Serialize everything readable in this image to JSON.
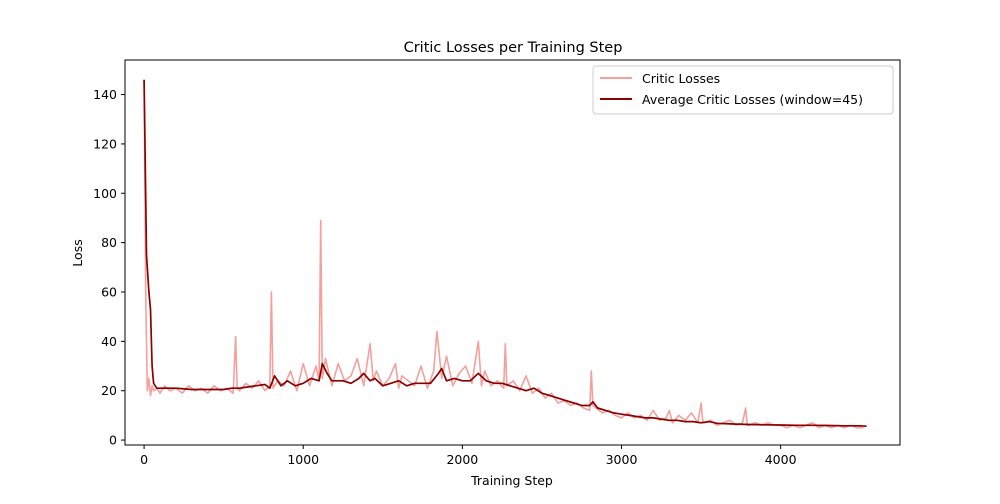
{
  "chart_data": {
    "type": "line",
    "title": "Critic Losses per Training Step",
    "xlabel": "Training Step",
    "ylabel": "Loss",
    "xlim": [
      -120,
      4750
    ],
    "ylim": [
      -2,
      154
    ],
    "xticks": [
      0,
      1000,
      2000,
      3000,
      4000
    ],
    "yticks": [
      0,
      20,
      40,
      60,
      80,
      100,
      120,
      140
    ],
    "grid": false,
    "legend_position": "upper right",
    "series": [
      {
        "name": "Critic Losses",
        "color": "#f4a09c",
        "x": [
          0,
          10,
          20,
          30,
          40,
          50,
          60,
          80,
          100,
          130,
          160,
          200,
          240,
          280,
          320,
          360,
          400,
          440,
          480,
          520,
          560,
          575,
          585,
          600,
          640,
          680,
          720,
          760,
          790,
          800,
          810,
          840,
          880,
          920,
          960,
          1000,
          1040,
          1080,
          1100,
          1110,
          1120,
          1140,
          1180,
          1220,
          1260,
          1300,
          1340,
          1380,
          1420,
          1440,
          1460,
          1500,
          1540,
          1580,
          1600,
          1620,
          1660,
          1700,
          1740,
          1780,
          1820,
          1840,
          1850,
          1870,
          1900,
          1940,
          1980,
          2020,
          2060,
          2100,
          2120,
          2140,
          2180,
          2220,
          2260,
          2270,
          2280,
          2320,
          2360,
          2400,
          2440,
          2480,
          2520,
          2560,
          2600,
          2640,
          2680,
          2720,
          2760,
          2800,
          2810,
          2820,
          2840,
          2880,
          2920,
          2960,
          3000,
          3040,
          3080,
          3120,
          3160,
          3200,
          3240,
          3280,
          3300,
          3320,
          3360,
          3400,
          3440,
          3480,
          3500,
          3510,
          3520,
          3560,
          3600,
          3640,
          3680,
          3720,
          3760,
          3780,
          3790,
          3800,
          3840,
          3880,
          3920,
          3960,
          4000,
          4040,
          4080,
          4120,
          4160,
          4200,
          4240,
          4280,
          4320,
          4360,
          4400,
          4440,
          4480,
          4520
        ],
        "y": [
          146,
          60,
          20,
          25,
          18,
          22,
          20,
          21,
          19,
          22,
          20,
          21,
          19,
          22,
          20,
          21,
          19,
          22,
          20,
          21,
          19,
          42,
          21,
          20,
          23,
          21,
          24,
          20,
          22,
          60,
          21,
          24,
          22,
          28,
          20,
          31,
          22,
          30,
          24,
          89,
          25,
          33,
          22,
          31,
          24,
          26,
          33,
          22,
          39,
          24,
          28,
          22,
          25,
          31,
          21,
          26,
          24,
          22,
          30,
          21,
          28,
          44,
          38,
          25,
          34,
          22,
          27,
          30,
          23,
          40,
          22,
          28,
          22,
          24,
          21,
          39,
          22,
          24,
          20,
          26,
          19,
          21,
          17,
          19,
          15,
          16,
          14,
          15,
          13,
          12,
          28,
          14,
          13,
          11,
          12,
          10,
          9,
          11,
          9,
          10,
          8,
          12,
          8,
          9,
          12,
          7,
          10,
          8,
          11,
          7,
          15,
          8,
          7,
          8,
          6,
          7,
          8,
          6,
          7,
          13,
          6,
          6,
          7,
          6,
          7,
          6,
          6,
          5,
          6,
          5,
          6,
          7,
          5,
          6,
          5,
          6,
          5,
          6,
          5,
          5
        ]
      },
      {
        "name": "Average Critic Losses (window=45)",
        "color": "#8b0000",
        "x": [
          0,
          15,
          30,
          40,
          50,
          60,
          80,
          100,
          150,
          200,
          300,
          400,
          500,
          550,
          600,
          650,
          700,
          760,
          790,
          820,
          860,
          900,
          950,
          1000,
          1050,
          1100,
          1120,
          1150,
          1180,
          1250,
          1300,
          1350,
          1380,
          1420,
          1450,
          1500,
          1550,
          1600,
          1650,
          1700,
          1750,
          1800,
          1850,
          1870,
          1900,
          1950,
          2000,
          2050,
          2100,
          2150,
          2200,
          2250,
          2300,
          2350,
          2400,
          2450,
          2500,
          2550,
          2600,
          2650,
          2700,
          2750,
          2800,
          2820,
          2850,
          2900,
          2950,
          3000,
          3050,
          3100,
          3150,
          3200,
          3250,
          3300,
          3350,
          3400,
          3450,
          3500,
          3550,
          3600,
          3700,
          3800,
          3900,
          4000,
          4100,
          4200,
          4300,
          4400,
          4500,
          4540
        ],
        "y": [
          146,
          75,
          60,
          53,
          30,
          23,
          21,
          21,
          21,
          21,
          20.5,
          20.5,
          20.5,
          21,
          21,
          21.5,
          22,
          22.5,
          21,
          26,
          22,
          24,
          22,
          23,
          25,
          24,
          31,
          27,
          24,
          24,
          23,
          25,
          27,
          24,
          25,
          22,
          23,
          24,
          22,
          23,
          23,
          23,
          27,
          29,
          24,
          25,
          24,
          24,
          27,
          24,
          23,
          23,
          22,
          21,
          20,
          21,
          19,
          18,
          17,
          16,
          15,
          14,
          14,
          15.5,
          13,
          12,
          11,
          10.5,
          10,
          9.5,
          9,
          9,
          8.5,
          8,
          8,
          7.5,
          7.5,
          7,
          7.5,
          6.8,
          6.5,
          6.3,
          6.2,
          6.1,
          6,
          6,
          5.9,
          5.8,
          5.8,
          5.6
        ]
      }
    ]
  }
}
